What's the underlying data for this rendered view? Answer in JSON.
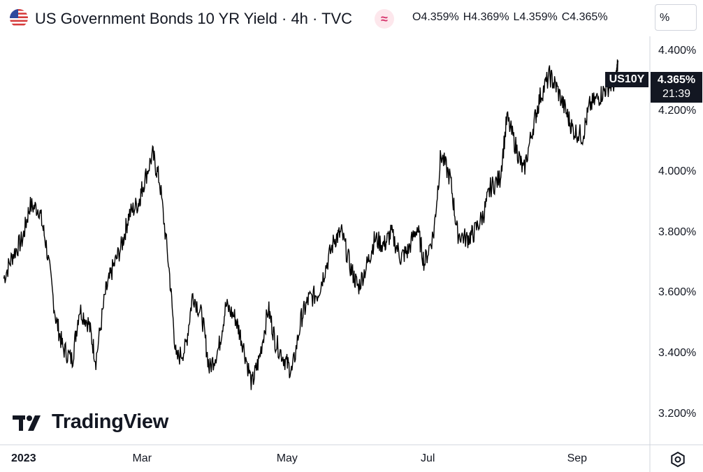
{
  "header": {
    "flag_icon": "us-flag-icon",
    "title": "US Government Bonds 10 YR Yield · 4h · TVC",
    "indicator_icon": "indicators-icon",
    "ohlc": [
      {
        "key": "O",
        "value": "4.359%"
      },
      {
        "key": "H",
        "value": "4.369%"
      },
      {
        "key": "L",
        "value": "4.359%"
      },
      {
        "key": "C",
        "value": "4.365%"
      }
    ],
    "scale_mode": "%"
  },
  "badges": {
    "symbol": "US10Y",
    "last_price": "4.365%",
    "countdown": "21:39"
  },
  "logo": {
    "icon": "tradingview-logo-icon",
    "text": "TradingView"
  },
  "footer": {
    "settings_icon": "settings-gear-icon"
  },
  "colors": {
    "line": "#000000",
    "badge_bg": "#131722",
    "border": "#d1d4dc"
  },
  "chart_data": {
    "type": "line",
    "title": "US Government Bonds 10 YR Yield · 4h · TVC",
    "xlabel": "",
    "ylabel": "",
    "x_ticks": [
      "2023",
      "Mar",
      "May",
      "Jul",
      "Sep"
    ],
    "y_ticks": [
      "3.200%",
      "3.400%",
      "3.600%",
      "3.800%",
      "4.000%",
      "4.200%",
      "4.400%"
    ],
    "ylim": [
      3.1,
      4.45
    ],
    "xlim": [
      "2023-01-01",
      "2023-10-01"
    ],
    "grid": false,
    "series": [
      {
        "x": [
          "2023-01-02",
          "2023-01-06",
          "2023-01-10",
          "2023-01-13",
          "2023-01-17",
          "2023-01-20",
          "2023-01-24",
          "2023-01-27",
          "2023-01-31",
          "2023-02-03",
          "2023-02-07",
          "2023-02-10",
          "2023-02-14",
          "2023-02-17",
          "2023-02-21",
          "2023-02-24",
          "2023-02-28",
          "2023-03-02",
          "2023-03-06",
          "2023-03-09",
          "2023-03-13",
          "2023-03-16",
          "2023-03-20",
          "2023-03-23",
          "2023-03-27",
          "2023-03-30",
          "2023-04-03",
          "2023-04-06",
          "2023-04-10",
          "2023-04-13",
          "2023-04-17",
          "2023-04-20",
          "2023-04-24",
          "2023-04-27",
          "2023-05-01",
          "2023-05-04",
          "2023-05-08",
          "2023-05-11",
          "2023-05-15",
          "2023-05-18",
          "2023-05-22",
          "2023-05-25",
          "2023-05-29",
          "2023-06-01",
          "2023-06-05",
          "2023-06-08",
          "2023-06-12",
          "2023-06-15",
          "2023-06-19",
          "2023-06-22",
          "2023-06-26",
          "2023-06-29",
          "2023-07-03",
          "2023-07-06",
          "2023-07-10",
          "2023-07-13",
          "2023-07-17",
          "2023-07-20",
          "2023-07-24",
          "2023-07-27",
          "2023-07-31",
          "2023-08-03",
          "2023-08-07",
          "2023-08-10",
          "2023-08-14",
          "2023-08-17",
          "2023-08-21",
          "2023-08-24",
          "2023-08-28",
          "2023-08-31",
          "2023-09-04",
          "2023-09-07",
          "2023-09-11",
          "2023-09-14",
          "2023-09-18",
          "2023-09-19"
        ],
        "values": [
          3.65,
          3.73,
          3.78,
          3.89,
          3.88,
          3.76,
          3.52,
          3.42,
          3.38,
          3.55,
          3.5,
          3.38,
          3.6,
          3.68,
          3.76,
          3.86,
          3.9,
          3.96,
          4.06,
          3.97,
          3.68,
          3.38,
          3.42,
          3.6,
          3.52,
          3.35,
          3.42,
          3.56,
          3.52,
          3.44,
          3.3,
          3.38,
          3.55,
          3.44,
          3.38,
          3.34,
          3.52,
          3.58,
          3.6,
          3.68,
          3.78,
          3.8,
          3.68,
          3.62,
          3.7,
          3.78,
          3.76,
          3.8,
          3.72,
          3.74,
          3.82,
          3.7,
          3.8,
          4.06,
          3.98,
          3.8,
          3.78,
          3.8,
          3.86,
          3.95,
          3.98,
          4.18,
          4.08,
          4.0,
          4.15,
          4.25,
          4.32,
          4.28,
          4.2,
          4.14,
          4.12,
          4.22,
          4.25,
          4.28,
          4.3,
          4.365
        ]
      }
    ]
  }
}
